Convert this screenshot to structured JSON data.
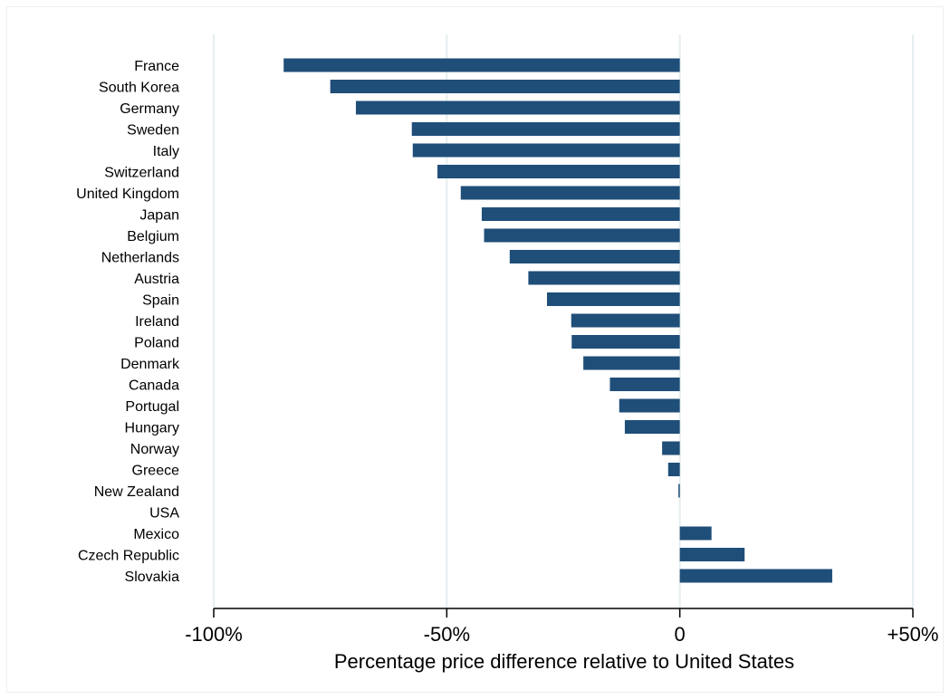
{
  "chart_data": {
    "type": "bar",
    "orientation": "horizontal",
    "title": "",
    "xlabel": "Percentage price difference relative to United States",
    "ylabel": "",
    "categories": [
      "France",
      "South Korea",
      "Germany",
      "Sweden",
      "Italy",
      "Switzerland",
      "United Kingdom",
      "Japan",
      "Belgium",
      "Netherlands",
      "Austria",
      "Spain",
      "Ireland",
      "Poland",
      "Denmark",
      "Canada",
      "Portugal",
      "Hungary",
      "Norway",
      "Greece",
      "New Zealand",
      "USA",
      "Mexico",
      "Czech Republic",
      "Slovakia"
    ],
    "values": [
      -85,
      -75,
      -69.5,
      -57.5,
      -57.3,
      -52,
      -47,
      -42.5,
      -42,
      -36.5,
      -32.5,
      -28.5,
      -23.3,
      -23.2,
      -20.7,
      -15,
      -13,
      -11.8,
      -3.8,
      -2.5,
      -0.3,
      0,
      6.8,
      13.9,
      32.7
    ],
    "xlim": [
      -100,
      50
    ],
    "xticks": [
      {
        "value": -100,
        "label": "-100%"
      },
      {
        "value": -50,
        "label": "-50%"
      },
      {
        "value": 0,
        "label": "0"
      },
      {
        "value": 50,
        "label": "+50%"
      }
    ],
    "grid": "vertical",
    "bar_color": "#1f4e79",
    "grid_color": "#e6eef0"
  }
}
